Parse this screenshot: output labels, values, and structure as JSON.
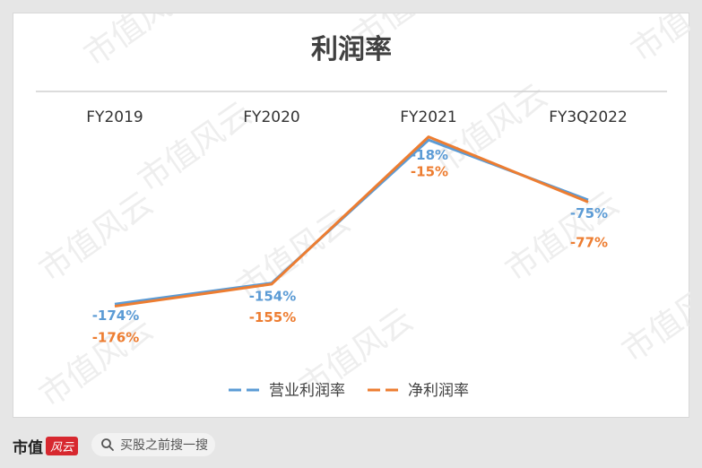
{
  "chart_data": {
    "type": "line",
    "title": "利润率",
    "categories": [
      "FY2019",
      "FY2020",
      "FY2021",
      "FY3Q2022"
    ],
    "series": [
      {
        "name": "营业利润率",
        "values": [
          -174,
          -154,
          -18,
          -75
        ],
        "labels": [
          "-174%",
          "-154%",
          "-18%",
          "-75%"
        ],
        "color": "#5b9bd5"
      },
      {
        "name": "净利润率",
        "values": [
          -176,
          -155,
          -15,
          -77
        ],
        "labels": [
          "-176%",
          "-155%",
          "-15%",
          "-77%"
        ],
        "color": "#ed7d31"
      }
    ],
    "ylim": [
      -190,
      0
    ],
    "legend_position": "bottom",
    "xaxis_position": "top"
  },
  "watermark": "市值风云",
  "footer": {
    "brand": "市值",
    "brand_mark": "风云",
    "search_icon": "search-icon",
    "search_text": "买股之前搜一搜"
  }
}
